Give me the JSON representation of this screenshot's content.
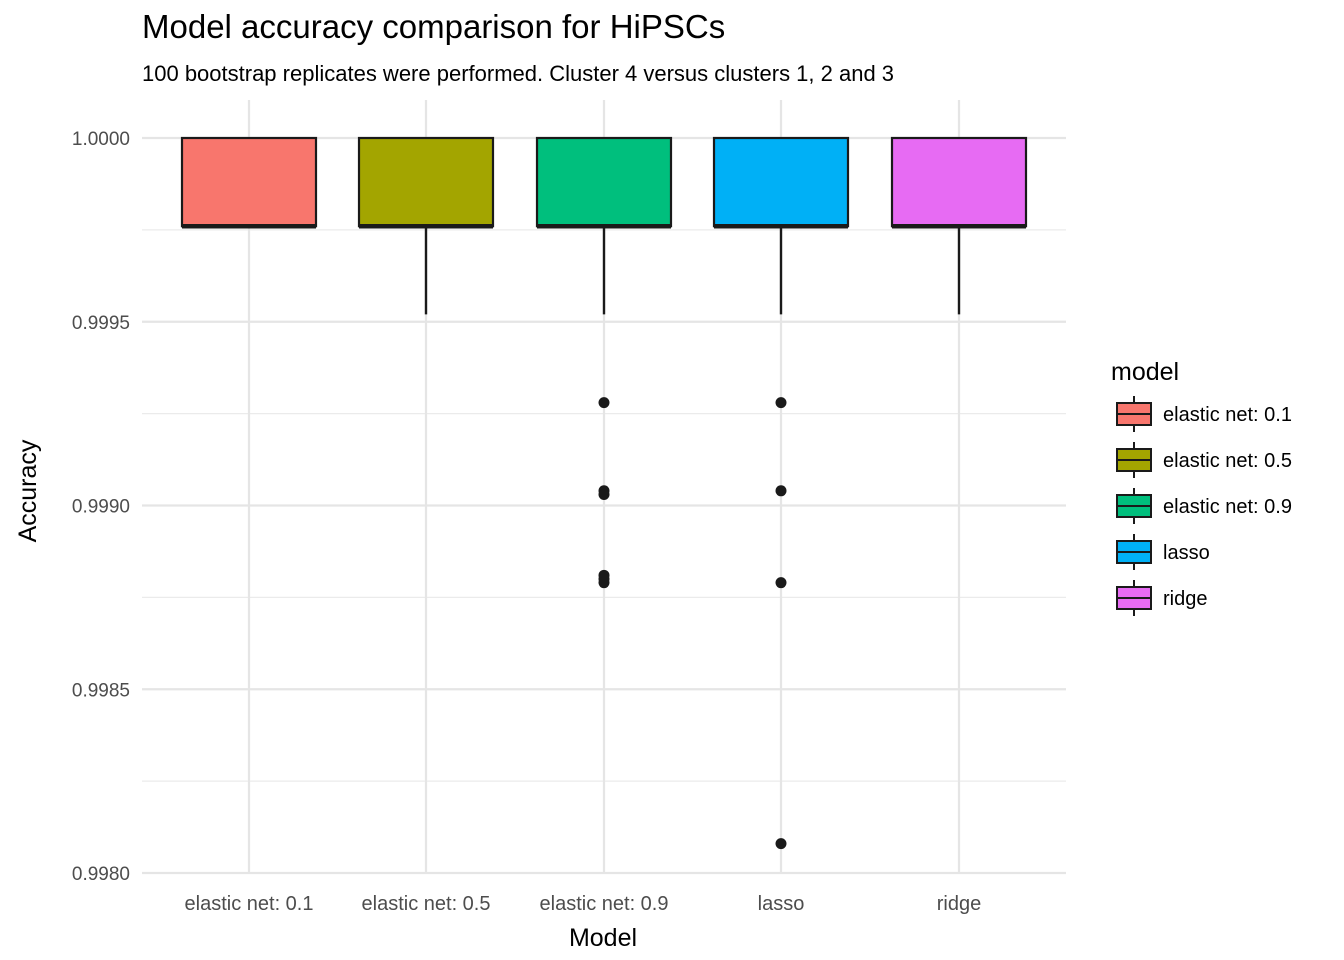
{
  "chart_data": {
    "type": "boxplot",
    "title": "Model accuracy comparison for HiPSCs",
    "subtitle": "100 bootstrap replicates were performed. Cluster 4 versus clusters 1, 2 and 3",
    "xlabel": "Model",
    "ylabel": "Accuracy",
    "ylim": [
      0.99798,
      1.0002
    ],
    "yticks": [
      1.0,
      0.9995,
      0.999,
      0.9985,
      0.998
    ],
    "ytick_labels": [
      "1.0000",
      "0.9995",
      "0.9990",
      "0.9985",
      "0.9980"
    ],
    "grid": true,
    "legend": {
      "title": "model",
      "placement": "right",
      "entries": [
        "elastic net: 0.1",
        "elastic net: 0.5",
        "elastic net: 0.9",
        "lasso",
        "ridge"
      ]
    },
    "categories": [
      "elastic net: 0.1",
      "elastic net: 0.5",
      "elastic net: 0.9",
      "lasso",
      "ridge"
    ],
    "colors": [
      "#F8766D",
      "#A3A500",
      "#00BF7D",
      "#00B0F6",
      "#E76BF3"
    ],
    "boxes": [
      {
        "name": "elastic net: 0.1",
        "whisker_low": 0.99976,
        "q1": 0.99976,
        "median": 0.99976,
        "q3": 1.0,
        "whisker_high": 1.0,
        "outliers": []
      },
      {
        "name": "elastic net: 0.5",
        "whisker_low": 0.99952,
        "q1": 0.99976,
        "median": 0.99976,
        "q3": 1.0,
        "whisker_high": 1.0,
        "outliers": []
      },
      {
        "name": "elastic net: 0.9",
        "whisker_low": 0.99952,
        "q1": 0.99976,
        "median": 0.99976,
        "q3": 1.0,
        "whisker_high": 1.0,
        "outliers": [
          0.99928,
          0.99904,
          0.99903,
          0.99881,
          0.9988,
          0.99879
        ]
      },
      {
        "name": "lasso",
        "whisker_low": 0.99952,
        "q1": 0.99976,
        "median": 0.99976,
        "q3": 1.0,
        "whisker_high": 1.0,
        "outliers": [
          0.99928,
          0.99904,
          0.99879,
          0.99808
        ]
      },
      {
        "name": "ridge",
        "whisker_low": 0.99952,
        "q1": 0.99976,
        "median": 0.99976,
        "q3": 1.0,
        "whisker_high": 1.0,
        "outliers": []
      }
    ]
  }
}
